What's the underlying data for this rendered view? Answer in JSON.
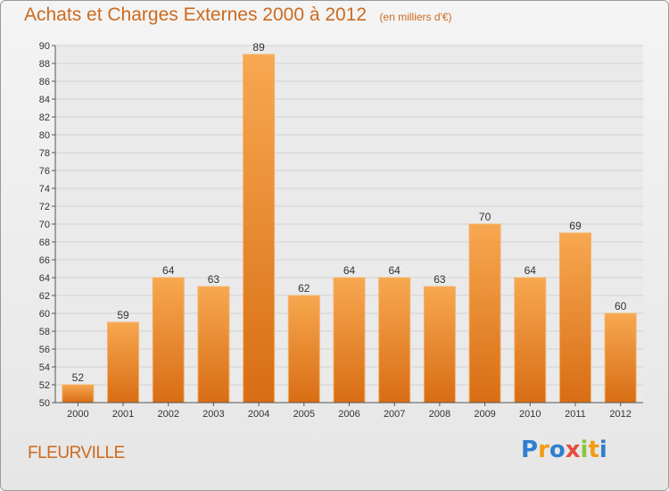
{
  "chart_data": {
    "type": "bar",
    "title": "Achats et Charges Externes 2000 à 2012",
    "subtitle": "(en milliers d'€)",
    "categories": [
      "2000",
      "2001",
      "2002",
      "2003",
      "2004",
      "2005",
      "2006",
      "2007",
      "2008",
      "2009",
      "2010",
      "2011",
      "2012"
    ],
    "values": [
      52,
      59,
      64,
      63,
      89,
      62,
      64,
      64,
      63,
      70,
      64,
      69,
      60
    ],
    "ylim": [
      50,
      90
    ],
    "yticks": [
      50,
      52,
      54,
      56,
      58,
      60,
      62,
      64,
      66,
      68,
      70,
      72,
      74,
      76,
      78,
      80,
      82,
      84,
      86,
      88,
      90
    ],
    "grid": true,
    "bar_color": "#f39c3d"
  },
  "location_name": "FLEURVILLE",
  "brand": {
    "letters": [
      "P",
      "r",
      "o",
      "x",
      "i",
      "t",
      "i"
    ],
    "colors": [
      "#2f7fd0",
      "#f39c12",
      "#2f7fd0",
      "#e74c3c",
      "#8bc53f",
      "#f39c12",
      "#2f7fd0"
    ]
  }
}
